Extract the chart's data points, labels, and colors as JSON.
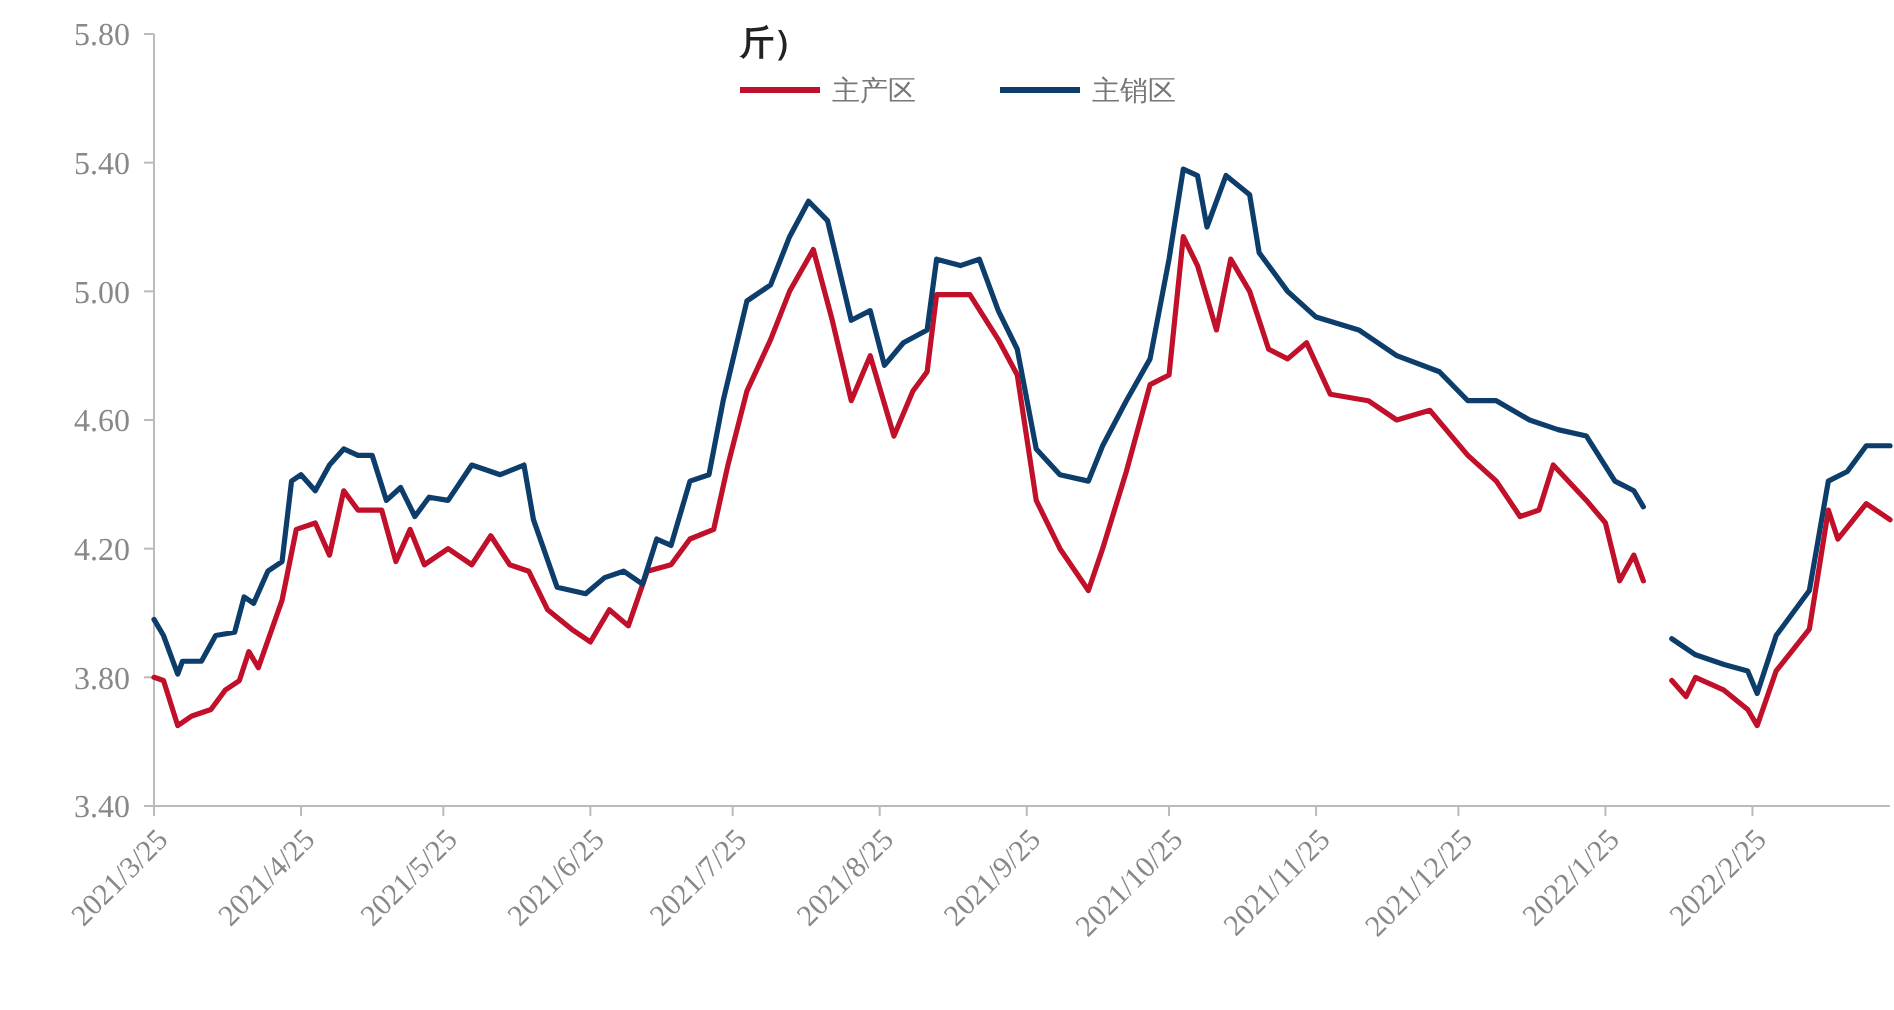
{
  "chart_data": {
    "type": "line",
    "title": "斤）",
    "xlim": [
      "2021-03-25",
      "2022-03-26"
    ],
    "xticks": [
      {
        "value": "2021-03-25",
        "label": "2021/3/25"
      },
      {
        "value": "2021-04-25",
        "label": "2021/4/25"
      },
      {
        "value": "2021-05-25",
        "label": "2021/5/25"
      },
      {
        "value": "2021-06-25",
        "label": "2021/6/25"
      },
      {
        "value": "2021-07-25",
        "label": "2021/7/25"
      },
      {
        "value": "2021-08-25",
        "label": "2021/8/25"
      },
      {
        "value": "2021-09-25",
        "label": "2021/9/25"
      },
      {
        "value": "2021-10-25",
        "label": "2021/10/25"
      },
      {
        "value": "2021-11-25",
        "label": "2021/11/25"
      },
      {
        "value": "2021-12-25",
        "label": "2021/12/25"
      },
      {
        "value": "2022-01-25",
        "label": "2022/1/25"
      },
      {
        "value": "2022-02-25",
        "label": "2022/2/25"
      }
    ],
    "ylim": [
      3.4,
      5.8
    ],
    "yticks": [
      {
        "value": 3.4,
        "label": "3.40"
      },
      {
        "value": 3.8,
        "label": "3.80"
      },
      {
        "value": 4.2,
        "label": "4.20"
      },
      {
        "value": 4.6,
        "label": "4.60"
      },
      {
        "value": 5.0,
        "label": "5.00"
      },
      {
        "value": 5.4,
        "label": "5.40"
      },
      {
        "value": 5.8,
        "label": "5.80"
      }
    ],
    "grid": false,
    "legend": "top",
    "marker": "none",
    "line_style": "solid",
    "series": [
      {
        "name": "主产区",
        "color": "#c0102a",
        "x": [
          "2021-03-25",
          "2021-03-27",
          "2021-03-30",
          "2021-04-02",
          "2021-04-06",
          "2021-04-09",
          "2021-04-12",
          "2021-04-14",
          "2021-04-16",
          "2021-04-21",
          "2021-04-24",
          "2021-04-28",
          "2021-05-01",
          "2021-05-04",
          "2021-05-07",
          "2021-05-12",
          "2021-05-15",
          "2021-05-18",
          "2021-05-21",
          "2021-05-26",
          "2021-05-31",
          "2021-06-04",
          "2021-06-08",
          "2021-06-12",
          "2021-06-16",
          "2021-06-21",
          "2021-06-25",
          "2021-06-29",
          "2021-07-03",
          "2021-07-07",
          "2021-07-12",
          "2021-07-16",
          "2021-07-21",
          "2021-07-24",
          "2021-07-28",
          "2021-08-02",
          "2021-08-06",
          "2021-08-11",
          "2021-08-15",
          "2021-08-19",
          "2021-08-23",
          "2021-08-28",
          "2021-09-01",
          "2021-09-04",
          "2021-09-06",
          "2021-09-13",
          "2021-09-19",
          "2021-09-23",
          "2021-09-27",
          "2021-10-02",
          "2021-10-08",
          "2021-10-11",
          "2021-10-16",
          "2021-10-21",
          "2021-10-25",
          "2021-10-28",
          "2021-10-31",
          "2021-11-04",
          "2021-11-07",
          "2021-11-11",
          "2021-11-15",
          "2021-11-19",
          "2021-11-23",
          "2021-11-28",
          "2021-12-06",
          "2021-12-12",
          "2021-12-19",
          "2021-12-27",
          "2022-01-02",
          "2022-01-07",
          "2022-01-11",
          "2022-01-14",
          "2022-01-21",
          "2022-01-25",
          "2022-01-28",
          "2022-01-31",
          "2022-02-02",
          "2022-02-05",
          "2022-02-08",
          "2022-02-11",
          "2022-02-13",
          "2022-02-19",
          "2022-02-24",
          "2022-02-26",
          "2022-03-02",
          "2022-03-09",
          "2022-03-13",
          "2022-03-15",
          "2022-03-21",
          "2022-03-26"
        ],
        "values": [
          3.8,
          3.79,
          3.65,
          3.68,
          3.7,
          3.76,
          3.79,
          3.88,
          3.83,
          4.04,
          4.26,
          4.28,
          4.18,
          4.38,
          4.32,
          4.32,
          4.16,
          4.26,
          4.15,
          4.2,
          4.15,
          4.24,
          4.15,
          4.13,
          4.01,
          3.95,
          3.91,
          4.01,
          3.96,
          4.13,
          4.15,
          4.23,
          4.26,
          4.46,
          4.69,
          4.85,
          5.0,
          5.13,
          4.91,
          4.66,
          4.8,
          4.55,
          4.69,
          4.75,
          4.99,
          4.99,
          4.85,
          4.74,
          4.35,
          4.2,
          4.07,
          4.2,
          4.44,
          4.71,
          4.74,
          5.17,
          5.08,
          4.88,
          5.1,
          5.0,
          4.82,
          4.79,
          4.84,
          4.68,
          4.66,
          4.6,
          4.63,
          4.49,
          4.41,
          4.3,
          4.32,
          4.46,
          4.35,
          4.28,
          4.1,
          4.18,
          4.1,
          null,
          3.79,
          3.74,
          3.8,
          3.76,
          3.7,
          3.65,
          3.82,
          3.95,
          4.32,
          4.23,
          4.34,
          4.29
        ]
      },
      {
        "name": "主销区",
        "color": "#0d3d6b",
        "x": [
          "2021-03-25",
          "2021-03-27",
          "2021-03-30",
          "2021-03-31",
          "2021-04-04",
          "2021-04-07",
          "2021-04-11",
          "2021-04-13",
          "2021-04-15",
          "2021-04-18",
          "2021-04-21",
          "2021-04-23",
          "2021-04-25",
          "2021-04-28",
          "2021-05-01",
          "2021-05-04",
          "2021-05-07",
          "2021-05-10",
          "2021-05-13",
          "2021-05-16",
          "2021-05-19",
          "2021-05-22",
          "2021-05-26",
          "2021-05-31",
          "2021-06-06",
          "2021-06-11",
          "2021-06-13",
          "2021-06-18",
          "2021-06-24",
          "2021-06-28",
          "2021-07-02",
          "2021-07-06",
          "2021-07-09",
          "2021-07-12",
          "2021-07-16",
          "2021-07-20",
          "2021-07-23",
          "2021-07-28",
          "2021-08-02",
          "2021-08-06",
          "2021-08-10",
          "2021-08-14",
          "2021-08-19",
          "2021-08-23",
          "2021-08-26",
          "2021-08-30",
          "2021-09-04",
          "2021-09-06",
          "2021-09-11",
          "2021-09-15",
          "2021-09-19",
          "2021-09-23",
          "2021-09-27",
          "2021-10-02",
          "2021-10-08",
          "2021-10-11",
          "2021-10-16",
          "2021-10-21",
          "2021-10-25",
          "2021-10-28",
          "2021-10-31",
          "2021-11-02",
          "2021-11-06",
          "2021-11-11",
          "2021-11-13",
          "2021-11-19",
          "2021-11-25",
          "2021-12-04",
          "2021-12-12",
          "2021-12-21",
          "2021-12-27",
          "2022-01-02",
          "2022-01-09",
          "2022-01-15",
          "2022-01-21",
          "2022-01-27",
          "2022-01-31",
          "2022-02-02",
          "2022-02-05",
          "2022-02-08",
          "2022-02-13",
          "2022-02-19",
          "2022-02-24",
          "2022-02-26",
          "2022-03-02",
          "2022-03-09",
          "2022-03-13",
          "2022-03-17",
          "2022-03-21",
          "2022-03-26"
        ],
        "values": [
          3.98,
          3.93,
          3.81,
          3.85,
          3.85,
          3.93,
          3.94,
          4.05,
          4.03,
          4.13,
          4.16,
          4.41,
          4.43,
          4.38,
          4.46,
          4.51,
          4.49,
          4.49,
          4.35,
          4.39,
          4.3,
          4.36,
          4.35,
          4.46,
          4.43,
          4.46,
          4.29,
          4.08,
          4.06,
          4.11,
          4.13,
          4.09,
          4.23,
          4.21,
          4.41,
          4.43,
          4.66,
          4.97,
          5.02,
          5.17,
          5.28,
          5.22,
          4.91,
          4.94,
          4.77,
          4.84,
          4.88,
          5.1,
          5.08,
          5.1,
          4.94,
          4.82,
          4.51,
          4.43,
          4.41,
          4.52,
          4.66,
          4.79,
          5.1,
          5.38,
          5.36,
          5.2,
          5.36,
          5.3,
          5.12,
          5.0,
          4.92,
          4.88,
          4.8,
          4.75,
          4.66,
          4.66,
          4.6,
          4.57,
          4.55,
          4.41,
          4.38,
          4.33,
          null,
          3.92,
          3.87,
          3.84,
          3.82,
          3.75,
          3.93,
          4.07,
          4.41,
          4.44,
          4.52,
          4.52
        ]
      }
    ]
  }
}
